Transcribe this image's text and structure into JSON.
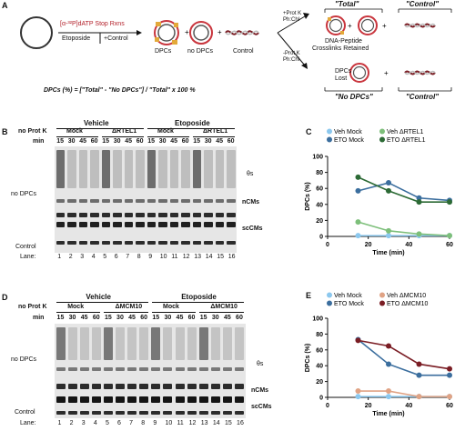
{
  "panel_a": {
    "label": "A",
    "reaction": "[α-³²P]dATP Stop Rxns",
    "etoposide": "Etoposide",
    "control_arrow": "+Control",
    "dpcs": "DPCs",
    "no_dpcs": "no DPCs",
    "control": "Control",
    "total_heading": "\"Total\"",
    "control_heading": "\"Control\"",
    "no_dpcs_heading": "\"No DPCs\"",
    "control_heading_2": "\"Control\"",
    "prot_k_plus_line1": "+Prot K",
    "prot_k_plus_line2": "Ph:Chl",
    "prot_k_minus_line1": "-Prot K",
    "prot_k_minus_line2": "Ph:Chl",
    "crosslinks_line1": "DNA-Peptide",
    "crosslinks_line2": "Crosslinks Retained",
    "dpcs_lost_line1": "DPCs",
    "dpcs_lost_line2": "Lost",
    "formula": "DPCs (%) = [\"Total\" - \"No DPCs\"] / \"Total\" x 100 %"
  },
  "panel_b": {
    "label": "B",
    "no_prot_k": "no Prot K",
    "min_label": "min",
    "group_left": "Vehicle",
    "group_right": "Etoposide",
    "sub_labels": [
      "Mock",
      "ΔRTEL1",
      "Mock",
      "ΔRTEL1"
    ],
    "times": [
      "15",
      "30",
      "45",
      "60",
      "15",
      "30",
      "45",
      "60",
      "15",
      "30",
      "45",
      "60",
      "15",
      "30",
      "45",
      "60"
    ],
    "lane_label": "Lane:",
    "lanes": [
      "1",
      "2",
      "3",
      "4",
      "5",
      "6",
      "7",
      "8",
      "9",
      "10",
      "11",
      "12",
      "13",
      "14",
      "15",
      "16"
    ],
    "no_dpcs_label": "no DPCs",
    "control_label": "Control",
    "band_theta": "θs",
    "band_ncms": "nCMs",
    "band_sccms": "scCMs"
  },
  "panel_d": {
    "label": "D",
    "no_prot_k": "no Prot K",
    "min_label": "min",
    "group_left": "Vehicle",
    "group_right": "Etoposide",
    "sub_labels": [
      "Mock",
      "ΔMCM10",
      "Mock",
      "ΔMCM10"
    ],
    "times": [
      "15",
      "30",
      "45",
      "60",
      "15",
      "30",
      "45",
      "60",
      "15",
      "30",
      "45",
      "60",
      "15",
      "30",
      "45",
      "60"
    ],
    "lane_label": "Lane:",
    "lanes": [
      "1",
      "2",
      "3",
      "4",
      "5",
      "6",
      "7",
      "8",
      "9",
      "10",
      "11",
      "12",
      "13",
      "14",
      "15",
      "16"
    ],
    "no_dpcs_label": "no DPCs",
    "control_label": "Control",
    "band_theta": "θs",
    "band_ncms": "nCMs",
    "band_sccms": "scCMs"
  },
  "chart_data": [
    {
      "panel": "C",
      "type": "line",
      "xlabel": "Time (min)",
      "ylabel": "DPCs (%)",
      "xlim": [
        0,
        60
      ],
      "ylim": [
        0,
        100
      ],
      "xticks": [
        0,
        20,
        40,
        60
      ],
      "yticks": [
        0,
        20,
        40,
        60,
        80,
        100
      ],
      "legend_placement": "top",
      "series": [
        {
          "name": "Veh Mock",
          "color": "#8cc8ee",
          "x": [
            15,
            30,
            45,
            60
          ],
          "y": [
            1,
            1,
            1,
            1
          ]
        },
        {
          "name": "Veh ΔRTEL1",
          "color": "#7dbf7a",
          "x": [
            15,
            30,
            45,
            60
          ],
          "y": [
            18,
            7,
            3,
            1
          ]
        },
        {
          "name": "ETO Mock",
          "color": "#3b6e9e",
          "x": [
            15,
            30,
            45,
            60
          ],
          "y": [
            57,
            67,
            48,
            45
          ]
        },
        {
          "name": "ETO ΔRTEL1",
          "color": "#2c6a35",
          "x": [
            15,
            30,
            45,
            60
          ],
          "y": [
            74,
            57,
            43,
            43
          ]
        }
      ]
    },
    {
      "panel": "E",
      "type": "line",
      "xlabel": "Time (min)",
      "ylabel": "DPCs (%)",
      "xlim": [
        0,
        60
      ],
      "ylim": [
        0,
        100
      ],
      "xticks": [
        0,
        20,
        40,
        60
      ],
      "yticks": [
        0,
        20,
        40,
        60,
        80,
        100
      ],
      "legend_placement": "top",
      "series": [
        {
          "name": "Veh Mock",
          "color": "#8cc8ee",
          "x": [
            15,
            30,
            45,
            60
          ],
          "y": [
            1,
            1,
            1,
            1
          ]
        },
        {
          "name": "Veh ΔMCM10",
          "color": "#e0a385",
          "x": [
            15,
            30,
            45,
            60
          ],
          "y": [
            8,
            8,
            1,
            1
          ]
        },
        {
          "name": "ETO Mock",
          "color": "#3b6e9e",
          "x": [
            15,
            30,
            45,
            60
          ],
          "y": [
            73,
            42,
            28,
            28
          ]
        },
        {
          "name": "ETO ΔMCM10",
          "color": "#7a1d24",
          "x": [
            15,
            30,
            45,
            60
          ],
          "y": [
            72,
            65,
            42,
            36
          ]
        }
      ]
    }
  ]
}
